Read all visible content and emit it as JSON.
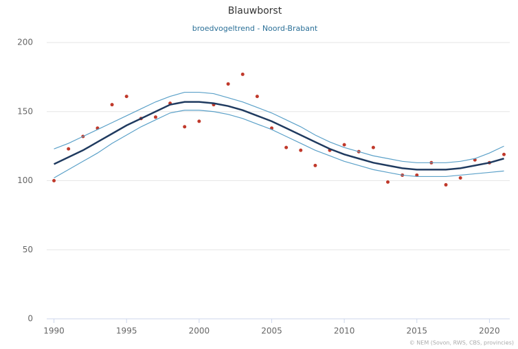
{
  "chart_data": {
    "type": "line",
    "title": "Blauwborst",
    "subtitle": "broedvogeltrend - Noord-Brabant",
    "credit": "© NEM (Sovon, RWS, CBS, provincies)",
    "x": [
      1990,
      1991,
      1992,
      1993,
      1994,
      1995,
      1996,
      1997,
      1998,
      1999,
      2000,
      2001,
      2002,
      2003,
      2004,
      2005,
      2006,
      2007,
      2008,
      2009,
      2010,
      2011,
      2012,
      2013,
      2014,
      2015,
      2016,
      2017,
      2018,
      2019,
      2020,
      2021
    ],
    "series": [
      {
        "style": "points",
        "color": "#c0392b",
        "values": [
          100,
          123,
          132,
          138,
          155,
          161,
          145,
          146,
          156,
          139,
          143,
          155,
          170,
          177,
          161,
          138,
          124,
          122,
          111,
          122,
          126,
          121,
          124,
          99,
          104,
          104,
          113,
          97,
          102,
          115,
          113,
          119
        ]
      },
      {
        "style": "line",
        "color": "#5aa0c8",
        "values": [
          123,
          127,
          132,
          137,
          142,
          147,
          152,
          157,
          161,
          164,
          164,
          163,
          160,
          157,
          153,
          149,
          144,
          139,
          133,
          128,
          124,
          121,
          118,
          116,
          114,
          113,
          113,
          113,
          114,
          116,
          120,
          125
        ]
      },
      {
        "style": "line",
        "color": "#5aa0c8",
        "values": [
          102,
          108,
          114,
          120,
          127,
          133,
          139,
          144,
          149,
          151,
          151,
          150,
          148,
          145,
          141,
          137,
          132,
          127,
          122,
          118,
          114,
          111,
          108,
          106,
          104,
          103,
          103,
          103,
          104,
          105,
          106,
          107
        ]
      },
      {
        "style": "line",
        "color": "#1f3a5f",
        "values": [
          112,
          117,
          122,
          128,
          134,
          140,
          145,
          150,
          155,
          157,
          157,
          156,
          154,
          151,
          147,
          143,
          138,
          133,
          128,
          123,
          119,
          116,
          113,
          111,
          109,
          108,
          108,
          108,
          109,
          111,
          113,
          116
        ]
      }
    ],
    "xlim": [
      1989.5,
      2021.4
    ],
    "xticks": [
      1990,
      1995,
      2000,
      2005,
      2010,
      2015,
      2020
    ],
    "ylim": [
      0,
      200
    ],
    "yticks": [
      0,
      50,
      100,
      150,
      200
    ],
    "grid": true
  }
}
